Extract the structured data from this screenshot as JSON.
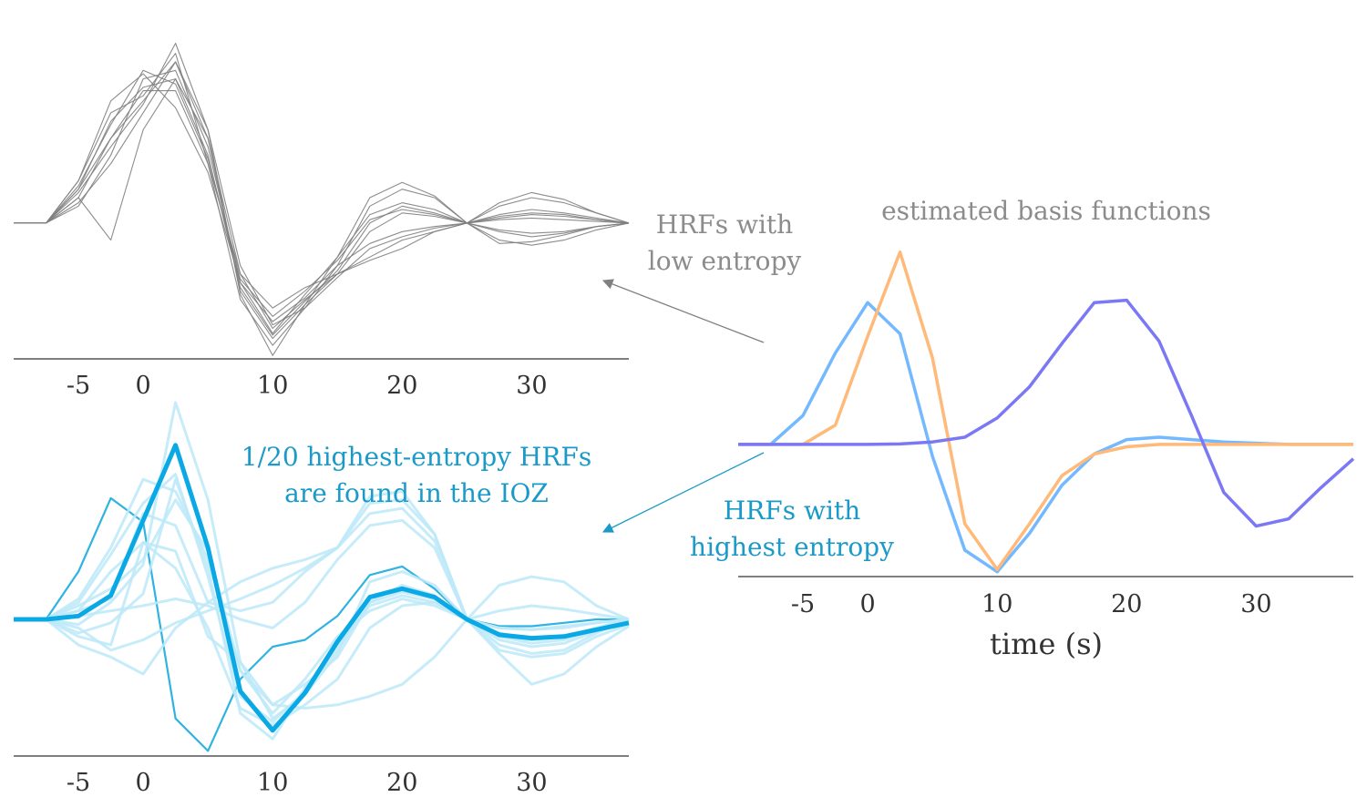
{
  "annotations": {
    "low_entropy_line1": "HRFs with",
    "low_entropy_line2": "low entropy",
    "basis_title": "estimated basis functions",
    "highest_entropy_line1": "HRFs with",
    "highest_entropy_line2": "highest entropy",
    "ioz_line1": "1/20 highest-entropy HRFs",
    "ioz_line2": "are found in the IOZ"
  },
  "colors": {
    "gray": "#808080",
    "annotation_gray": "#8c8c8c",
    "cyan_text": "#1a9ac8",
    "blue": "#74b9ff",
    "orange": "#ffb978",
    "purple": "#7b78f5",
    "highlight": "#0aa9e6",
    "dark_cyan": "#2fb3e0",
    "light_cyan": "#bde9f8",
    "axis": "#333333"
  },
  "chart_data": [
    {
      "id": "low_entropy_hrfs",
      "type": "line",
      "xlabel": "",
      "ylabel": "",
      "xlim": [
        -10,
        37.5
      ],
      "ylim": [
        -0.8,
        1.1
      ],
      "xticks": [
        -5,
        0,
        10,
        20,
        30
      ],
      "x": [
        -10,
        -7.5,
        -5,
        -2.5,
        0,
        2.5,
        5,
        7.5,
        10,
        12.5,
        15,
        17.5,
        20,
        22.5,
        25,
        27.5,
        30,
        32.5,
        35,
        37.5
      ],
      "series": [
        {
          "values": [
            0,
            0,
            0.15,
            0.5,
            0.78,
            0.78,
            0.35,
            -0.3,
            -0.62,
            -0.45,
            -0.3,
            -0.2,
            -0.1,
            -0.05,
            0,
            0.03,
            0.05,
            0.04,
            0.02,
            0
          ]
        },
        {
          "values": [
            0,
            0,
            0.25,
            0.65,
            0.75,
            1.0,
            0.35,
            -0.45,
            -0.72,
            -0.5,
            -0.25,
            0.1,
            0.2,
            0.15,
            0,
            -0.05,
            -0.08,
            -0.06,
            -0.02,
            0
          ]
        },
        {
          "values": [
            0,
            0,
            0.2,
            0.5,
            0.72,
            0.95,
            0.5,
            -0.4,
            -0.68,
            -0.48,
            -0.3,
            -0.05,
            0.06,
            0.04,
            0,
            0.1,
            0.15,
            0.12,
            0.06,
            0
          ]
        },
        {
          "values": [
            0,
            0,
            0.1,
            0.4,
            0.85,
            0.9,
            0.45,
            -0.35,
            -0.65,
            -0.42,
            -0.2,
            0.05,
            0.12,
            0.08,
            0,
            -0.1,
            -0.13,
            -0.1,
            -0.04,
            0
          ]
        },
        {
          "values": [
            0,
            0,
            0.15,
            -0.1,
            0.55,
            0.85,
            0.5,
            -0.3,
            -0.5,
            -0.38,
            -0.3,
            -0.22,
            -0.15,
            -0.05,
            0,
            0.12,
            0.18,
            0.14,
            0.06,
            0
          ]
        },
        {
          "values": [
            0,
            0,
            0.25,
            0.72,
            0.88,
            0.68,
            0.3,
            -0.35,
            -0.58,
            -0.44,
            -0.25,
            -0.12,
            -0.05,
            -0.02,
            0,
            0.04,
            0.06,
            0.05,
            0.02,
            0
          ]
        },
        {
          "values": [
            0,
            0,
            0.18,
            0.45,
            0.7,
            1.06,
            0.55,
            -0.42,
            -0.78,
            -0.48,
            -0.2,
            0.15,
            0.24,
            0.16,
            0,
            -0.12,
            -0.11,
            -0.07,
            -0.02,
            0
          ]
        },
        {
          "values": [
            0,
            0,
            0.2,
            0.6,
            0.8,
            0.85,
            0.4,
            -0.38,
            -0.66,
            -0.46,
            -0.28,
            0.0,
            0.1,
            0.06,
            0,
            0.05,
            0.08,
            0.06,
            0.03,
            0
          ]
        },
        {
          "values": [
            0,
            0,
            0.12,
            0.35,
            0.65,
            0.95,
            0.55,
            -0.25,
            -0.6,
            -0.5,
            -0.32,
            -0.15,
            -0.08,
            -0.03,
            0,
            0.02,
            0.03,
            0.02,
            0.01,
            0
          ]
        },
        {
          "values": [
            0,
            0,
            0.22,
            0.58,
            0.9,
            0.82,
            0.38,
            -0.33,
            -0.55,
            -0.4,
            -0.22,
            0.02,
            0.08,
            0.05,
            0,
            -0.04,
            -0.06,
            -0.05,
            -0.02,
            0
          ]
        }
      ]
    },
    {
      "id": "highest_entropy_hrfs",
      "type": "line",
      "xlabel": "",
      "ylabel": "",
      "xlim": [
        -10,
        37.5
      ],
      "ylim": [
        -0.8,
        1.2
      ],
      "xticks": [
        -5,
        0,
        10,
        20,
        30
      ],
      "x": [
        -10,
        -7.5,
        -5,
        -2.5,
        0,
        2.5,
        5,
        7.5,
        10,
        12.5,
        15,
        17.5,
        20,
        22.5,
        25,
        27.5,
        30,
        32.5,
        35,
        37.5
      ],
      "series": [
        {
          "role": "highlight",
          "values": [
            0,
            0,
            0.02,
            0.14,
            0.58,
            1.02,
            0.42,
            -0.42,
            -0.65,
            -0.43,
            -0.13,
            0.13,
            0.18,
            0.13,
            0,
            -0.09,
            -0.11,
            -0.1,
            -0.06,
            -0.02
          ]
        },
        {
          "role": "dark",
          "values": [
            0,
            0,
            0.28,
            0.71,
            0.57,
            -0.58,
            -0.77,
            -0.35,
            -0.16,
            -0.12,
            0.02,
            0.26,
            0.31,
            0.18,
            0,
            -0.04,
            -0.04,
            -0.02,
            0,
            0
          ]
        },
        {
          "role": "light",
          "values": [
            0,
            0,
            -0.03,
            0.1,
            0.32,
            1.27,
            0.7,
            -0.25,
            -0.58,
            -0.44,
            -0.2,
            0.22,
            0.28,
            0.2,
            0,
            -0.18,
            -0.22,
            -0.2,
            -0.1,
            -0.03
          ]
        },
        {
          "role": "light",
          "values": [
            0,
            0,
            0.12,
            0.42,
            0.82,
            0.75,
            0.35,
            -0.3,
            -0.5,
            -0.38,
            -0.22,
            0.1,
            0.2,
            0.14,
            0,
            -0.1,
            -0.14,
            -0.12,
            -0.06,
            0
          ]
        },
        {
          "role": "light",
          "values": [
            0,
            0,
            -0.08,
            -0.02,
            0.15,
            0.82,
            0.3,
            -0.55,
            -0.7,
            -0.4,
            -0.18,
            0.1,
            0.16,
            0.12,
            0,
            -0.2,
            -0.38,
            -0.32,
            -0.16,
            -0.04
          ]
        },
        {
          "role": "light",
          "values": [
            0,
            0,
            -0.15,
            -0.22,
            -0.32,
            -0.05,
            0.1,
            0.22,
            0.3,
            0.35,
            0.42,
            0.72,
            0.75,
            0.5,
            0,
            0.2,
            0.25,
            0.22,
            0.08,
            0
          ]
        },
        {
          "role": "light",
          "values": [
            0,
            0,
            -0.05,
            -0.18,
            -0.12,
            -0.02,
            0.05,
            0.12,
            0.2,
            0.3,
            0.42,
            0.62,
            0.65,
            0.46,
            0,
            -0.05,
            -0.06,
            -0.04,
            -0.02,
            0
          ]
        },
        {
          "role": "light",
          "values": [
            0,
            0,
            -0.1,
            -0.15,
            0.45,
            0.4,
            -0.1,
            -0.25,
            -0.5,
            -0.52,
            -0.5,
            -0.45,
            -0.38,
            -0.22,
            0,
            -0.08,
            -0.12,
            -0.1,
            -0.05,
            0
          ]
        },
        {
          "role": "light",
          "values": [
            0,
            0,
            0.05,
            0.12,
            0.62,
            0.55,
            0.1,
            0.05,
            0.1,
            0.28,
            0.42,
            0.68,
            0.7,
            0.5,
            0,
            0.05,
            0.08,
            0.06,
            0.03,
            0
          ]
        },
        {
          "role": "light",
          "values": [
            0,
            0,
            0.05,
            0.28,
            0.45,
            0.3,
            -0.05,
            -0.52,
            -0.62,
            -0.5,
            -0.35,
            -0.05,
            0.08,
            0.1,
            0,
            -0.05,
            -0.06,
            -0.05,
            -0.02,
            0
          ]
        },
        {
          "role": "light",
          "values": [
            0,
            0,
            0.08,
            0.18,
            0.35,
            0.7,
            0.4,
            -0.3,
            -0.55,
            -0.35,
            -0.1,
            0.05,
            0.12,
            0.08,
            0,
            -0.1,
            -0.12,
            -0.1,
            -0.05,
            0
          ]
        },
        {
          "role": "light",
          "values": [
            0,
            0,
            0.02,
            0.05,
            0.08,
            0.12,
            0.08,
            0.0,
            -0.05,
            0.1,
            0.35,
            0.55,
            0.58,
            0.42,
            0,
            -0.15,
            -0.2,
            -0.18,
            -0.08,
            0
          ]
        },
        {
          "role": "light",
          "values": [
            0,
            0,
            0.1,
            0.38,
            0.68,
            0.85,
            0.25,
            -0.45,
            -0.6,
            -0.42,
            -0.15,
            0.08,
            0.14,
            0.1,
            0,
            -0.12,
            -0.16,
            -0.14,
            -0.07,
            0
          ]
        }
      ]
    },
    {
      "id": "estimated_basis_functions",
      "type": "line",
      "title": "estimated basis functions",
      "xlabel": "time (s)",
      "ylabel": "",
      "xlim": [
        -10,
        37.5
      ],
      "ylim": [
        -0.55,
        0.75
      ],
      "xticks": [
        -5,
        0,
        10,
        20,
        30
      ],
      "x": [
        -10,
        -7.5,
        -5,
        -2.5,
        0,
        2.5,
        5,
        7.5,
        10,
        12.5,
        15,
        17.5,
        20,
        22.5,
        25,
        27.5,
        30,
        32.5,
        35,
        37.5
      ],
      "series": [
        {
          "role": "blue",
          "values": [
            0,
            0,
            0.12,
            0.38,
            0.59,
            0.46,
            -0.05,
            -0.44,
            -0.53,
            -0.37,
            -0.17,
            -0.04,
            0.02,
            0.03,
            0.02,
            0.01,
            0.005,
            0.0,
            0.0,
            0
          ]
        },
        {
          "role": "orange",
          "values": [
            0,
            0,
            0,
            0.08,
            0.45,
            0.8,
            0.36,
            -0.33,
            -0.52,
            -0.33,
            -0.13,
            -0.04,
            -0.01,
            0,
            0,
            0,
            0,
            0,
            0,
            0
          ]
        },
        {
          "role": "purple",
          "values": [
            0,
            0,
            0,
            0,
            0,
            0.002,
            0.01,
            0.03,
            0.11,
            0.24,
            0.42,
            0.59,
            0.6,
            0.43,
            0.12,
            -0.2,
            -0.34,
            -0.31,
            -0.18,
            -0.06
          ]
        }
      ]
    }
  ]
}
